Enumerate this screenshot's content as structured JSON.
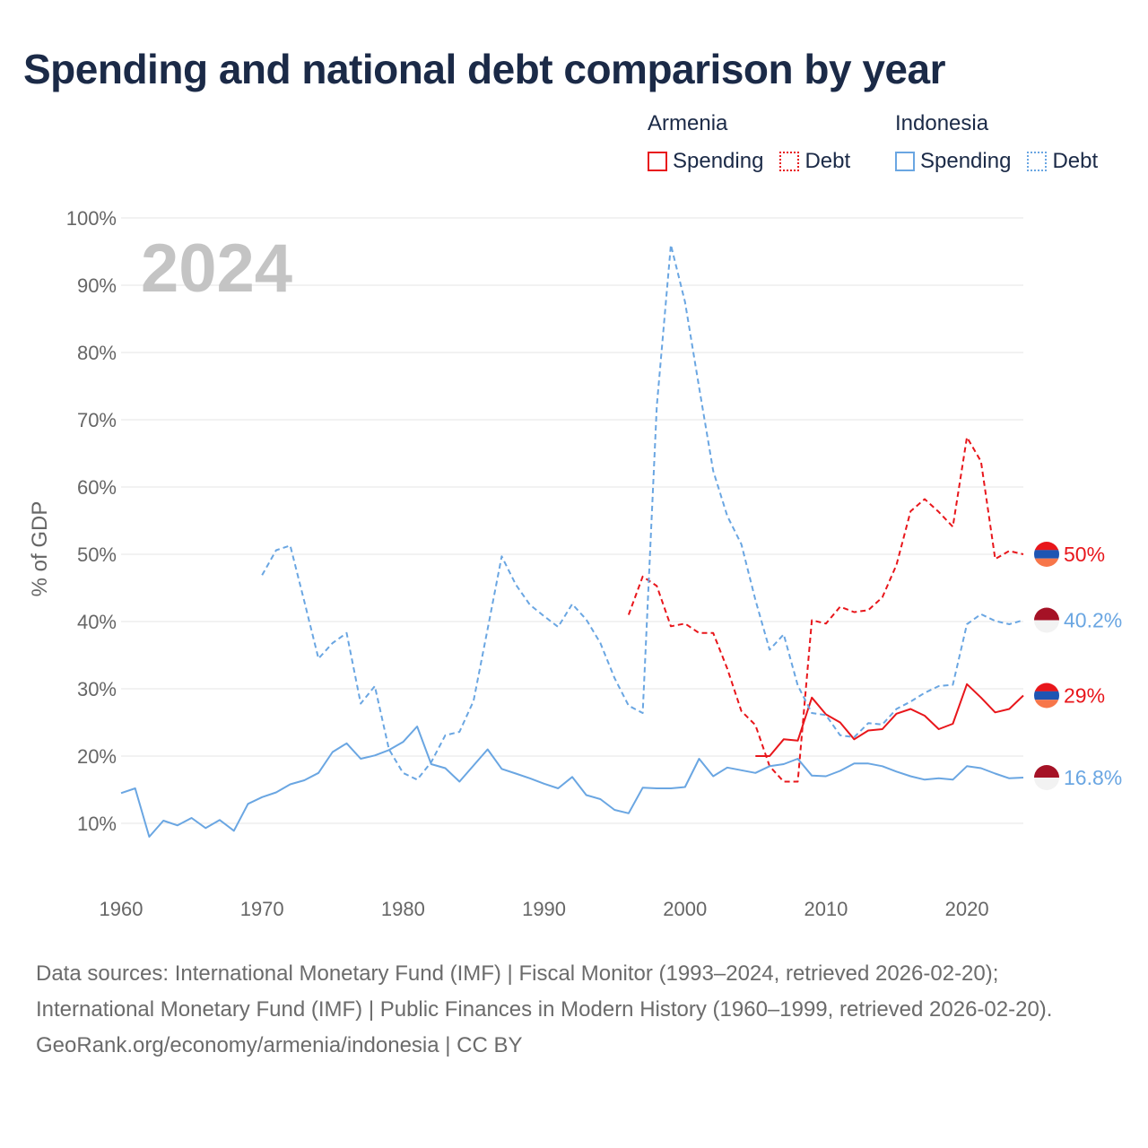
{
  "title": "Spending and national debt comparison by year",
  "legend": {
    "groups": [
      {
        "country": "Armenia",
        "color": "#e8161b",
        "spending_label": "Spending",
        "debt_label": "Debt"
      },
      {
        "country": "Indonesia",
        "color": "#6aa6e2",
        "spending_label": "Spending",
        "debt_label": "Debt"
      }
    ]
  },
  "footer": {
    "sources": "Data sources: International Monetary Fund (IMF) | Fiscal Monitor (1993–2024, retrieved 2026-02-20); International Monetary Fund (IMF) | Public Finances in Modern History (1960–1999, retrieved 2026-02-20).",
    "credit": "GeoRank.org/economy/armenia/indonesia | CC BY"
  },
  "chart_data": {
    "type": "line",
    "year_label": "2024",
    "ylabel": "% of GDP",
    "xlabel": "",
    "xlim": [
      1960,
      2024
    ],
    "ylim": [
      0,
      100
    ],
    "x_ticks": [
      1960,
      1970,
      1980,
      1990,
      2000,
      2010,
      2020
    ],
    "y_ticks": [
      10,
      20,
      30,
      40,
      50,
      60,
      70,
      80,
      90,
      100
    ],
    "y_tick_labels": [
      "10%",
      "20%",
      "30%",
      "40%",
      "50%",
      "60%",
      "70%",
      "80%",
      "90%",
      "100%"
    ],
    "grid": true,
    "series": [
      {
        "name": "Armenia Spending",
        "country": "Armenia",
        "kind": "spending",
        "color": "#e8161b",
        "dashed": false,
        "end_label": "29%",
        "flag": "armenia",
        "x": [
          2005,
          2006,
          2007,
          2008,
          2009,
          2010,
          2011,
          2012,
          2013,
          2014,
          2015,
          2016,
          2017,
          2018,
          2019,
          2020,
          2021,
          2022,
          2023,
          2024
        ],
        "y": [
          20,
          20,
          22.5,
          22.3,
          28.7,
          26.2,
          25,
          22.5,
          23.8,
          24,
          26.3,
          27,
          26,
          24,
          24.8,
          30.7,
          28.7,
          26.5,
          27,
          29
        ]
      },
      {
        "name": "Armenia Debt",
        "country": "Armenia",
        "kind": "debt",
        "color": "#e8161b",
        "dashed": true,
        "end_label": "50%",
        "flag": "armenia",
        "x": [
          1996,
          1997,
          1998,
          1999,
          2000,
          2001,
          2002,
          2003,
          2004,
          2005,
          2006,
          2007,
          2008,
          2009,
          2010,
          2011,
          2012,
          2013,
          2014,
          2015,
          2016,
          2017,
          2018,
          2019,
          2020,
          2021,
          2022,
          2023,
          2024
        ],
        "y": [
          41,
          46.7,
          45.3,
          39.3,
          39.7,
          38.3,
          38.3,
          33,
          26.7,
          24.6,
          18.5,
          16.2,
          16.2,
          40.2,
          39.7,
          42.2,
          41.4,
          41.7,
          43.6,
          48.4,
          56.4,
          58.2,
          56.3,
          54.1,
          67.4,
          63.8,
          49.3,
          50.5,
          50
        ]
      },
      {
        "name": "Indonesia Spending",
        "country": "Indonesia",
        "kind": "spending",
        "color": "#6aa6e2",
        "dashed": false,
        "end_label": "16.8%",
        "flag": "indonesia",
        "x": [
          1960,
          1961,
          1962,
          1963,
          1964,
          1965,
          1966,
          1967,
          1968,
          1969,
          1970,
          1971,
          1972,
          1973,
          1974,
          1975,
          1976,
          1977,
          1978,
          1979,
          1980,
          1981,
          1982,
          1983,
          1984,
          1985,
          1986,
          1987,
          1988,
          1989,
          1990,
          1991,
          1992,
          1993,
          1994,
          1995,
          1996,
          1997,
          1998,
          1999,
          2000,
          2001,
          2002,
          2003,
          2004,
          2005,
          2006,
          2007,
          2008,
          2009,
          2010,
          2011,
          2012,
          2013,
          2014,
          2015,
          2016,
          2017,
          2018,
          2019,
          2020,
          2021,
          2022,
          2023,
          2024
        ],
        "y": [
          14.5,
          15.2,
          8,
          10.4,
          9.7,
          10.8,
          9.3,
          10.5,
          8.9,
          12.9,
          13.9,
          14.6,
          15.8,
          16.4,
          17.5,
          20.6,
          21.9,
          19.6,
          20.1,
          20.9,
          22.1,
          24.4,
          18.8,
          18.2,
          16.2,
          18.6,
          21,
          18.1,
          17.4,
          16.7,
          15.9,
          15.2,
          16.9,
          14.2,
          13.6,
          12,
          11.5,
          15.3,
          15.2,
          15.2,
          15.4,
          19.6,
          17,
          18.3,
          17.9,
          17.5,
          18.5,
          18.8,
          19.6,
          17.1,
          17,
          17.8,
          18.9,
          18.9,
          18.5,
          17.7,
          17,
          16.5,
          16.7,
          16.5,
          18.5,
          18.2,
          17.4,
          16.7,
          16.8
        ]
      },
      {
        "name": "Indonesia Debt",
        "country": "Indonesia",
        "kind": "debt",
        "color": "#6aa6e2",
        "dashed": true,
        "end_label": "40.2%",
        "flag": "indonesia",
        "x": [
          1970,
          1971,
          1972,
          1973,
          1974,
          1975,
          1976,
          1977,
          1978,
          1979,
          1980,
          1981,
          1982,
          1983,
          1984,
          1985,
          1986,
          1987,
          1988,
          1989,
          1990,
          1991,
          1992,
          1993,
          1994,
          1995,
          1996,
          1997,
          1998,
          1999,
          2000,
          2001,
          2002,
          2003,
          2004,
          2005,
          2006,
          2007,
          2008,
          2009,
          2010,
          2011,
          2012,
          2013,
          2014,
          2015,
          2016,
          2017,
          2018,
          2019,
          2020,
          2021,
          2022,
          2023,
          2024
        ],
        "y": [
          46.9,
          50.6,
          51.3,
          43,
          34.5,
          36.8,
          38.3,
          27.8,
          30.4,
          21,
          17.5,
          16.5,
          19.1,
          23.1,
          23.6,
          28.2,
          38.9,
          49.7,
          45.5,
          42.5,
          40.8,
          39.2,
          42.6,
          40.3,
          36.8,
          31.6,
          27.5,
          26.4,
          72,
          96,
          87.5,
          74.8,
          62.4,
          55.7,
          51.5,
          43.2,
          35.8,
          38.1,
          30.5,
          26.4,
          26.1,
          23.1,
          22.8,
          24.9,
          24.7,
          27,
          28.1,
          29.4,
          30.4,
          30.6,
          39.6,
          41.1,
          40.1,
          39.6,
          40.2
        ]
      }
    ]
  }
}
